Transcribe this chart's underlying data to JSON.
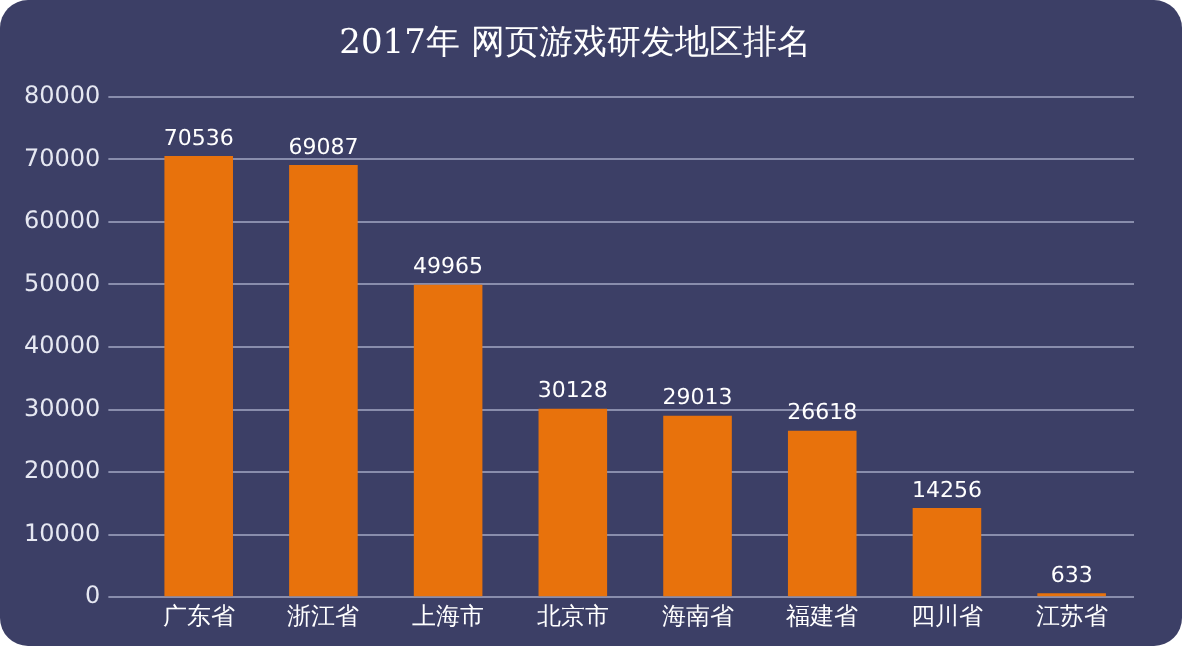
{
  "chart_data": {
    "type": "bar",
    "title": "2017年 网页游戏研发地区排名",
    "categories": [
      "广东省",
      "浙江省",
      "上海市",
      "北京市",
      "海南省",
      "福建省",
      "四川省",
      "江苏省"
    ],
    "values": [
      70536,
      69087,
      49965,
      30128,
      29013,
      26618,
      14256,
      633
    ],
    "color": "#e8720c",
    "ylim": [
      0,
      80000
    ],
    "yticks": [
      0,
      10000,
      20000,
      30000,
      40000,
      50000,
      60000,
      70000,
      80000
    ],
    "grid": "y",
    "data_labels": true,
    "legend": false
  }
}
